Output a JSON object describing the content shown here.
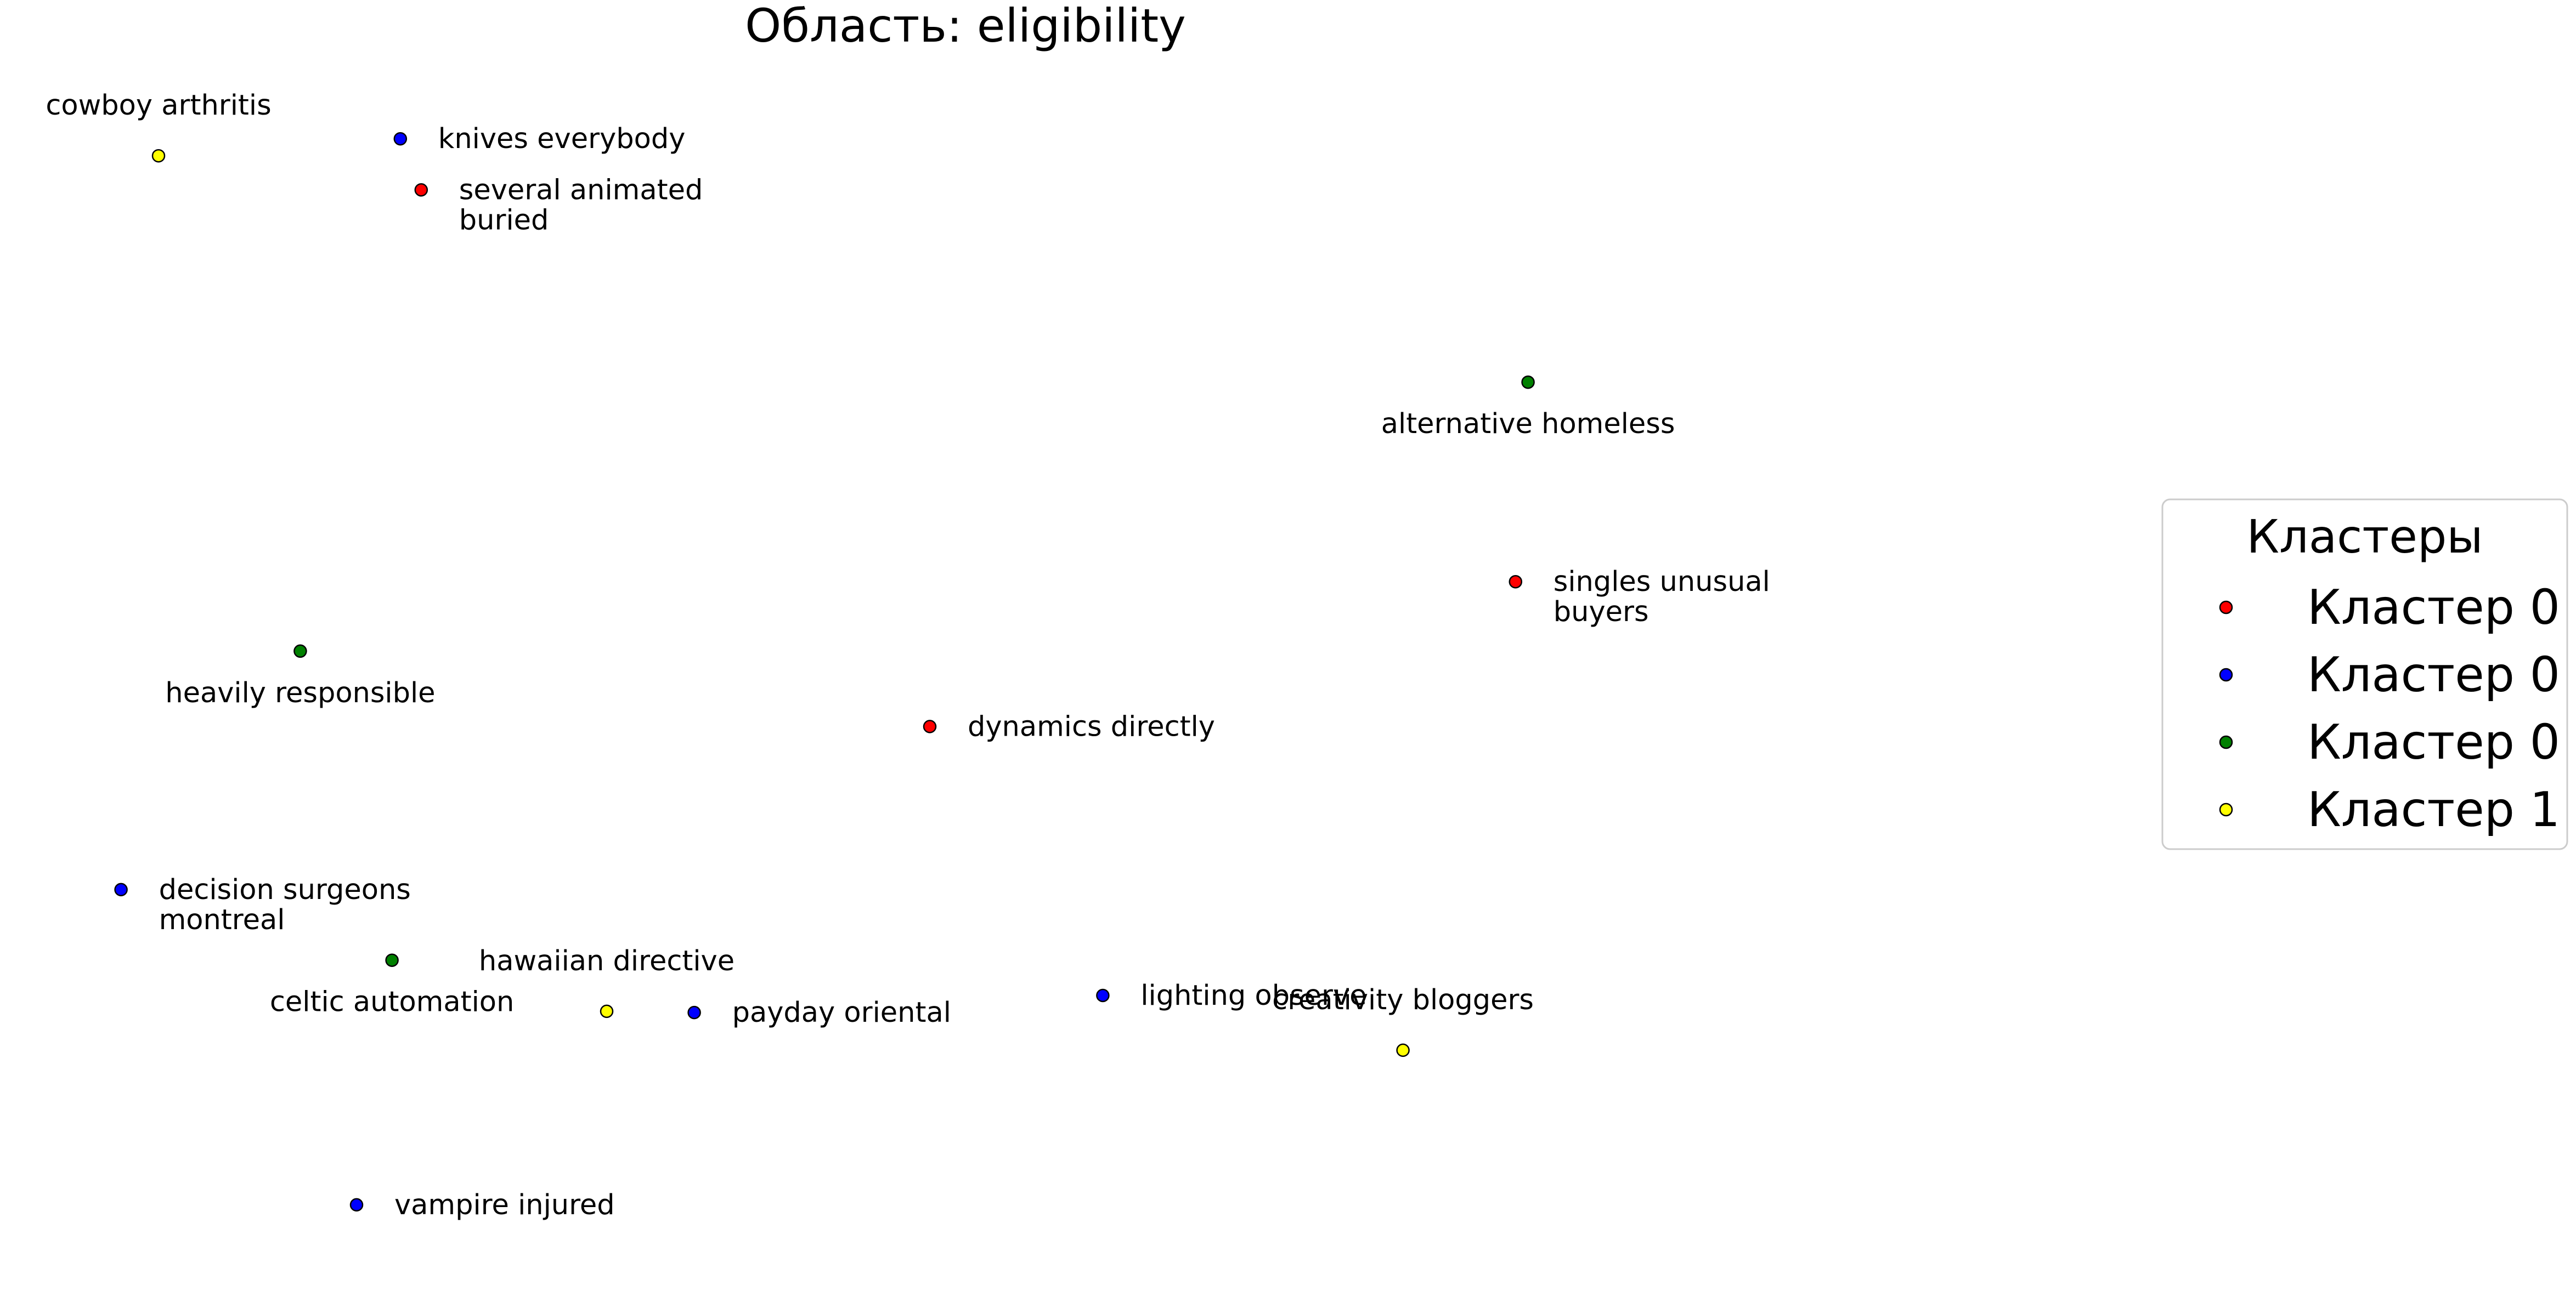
{
  "chart_data": {
    "type": "scatter",
    "title": "Область: eligibility",
    "xlabel": "",
    "ylabel": "",
    "axes_visible": false,
    "grid": false,
    "xlim": [
      0,
      100
    ],
    "ylim": [
      0,
      100
    ],
    "legend": {
      "title": "Кластеры",
      "position": "right",
      "entries": [
        {
          "label": "Кластер 0",
          "color": "#ff0000"
        },
        {
          "label": "Кластер 0",
          "color": "#0000ff"
        },
        {
          "label": "Кластер 0",
          "color": "#008000"
        },
        {
          "label": "Кластер 1",
          "color": "#ffff00"
        }
      ]
    },
    "points": [
      {
        "lines": [
          "cowboy arthritis"
        ],
        "x": 5.5,
        "y": 90.8,
        "color": "#ffff00",
        "label_pos": "above"
      },
      {
        "lines": [
          "knives everybody"
        ],
        "x": 17.1,
        "y": 92.2,
        "color": "#0000ff",
        "label_pos": "right"
      },
      {
        "lines": [
          "several animated",
          "buried"
        ],
        "x": 18.1,
        "y": 88.0,
        "color": "#ff0000",
        "label_pos": "right"
      },
      {
        "lines": [
          "alternative homeless"
        ],
        "x": 71.2,
        "y": 72.2,
        "color": "#008000",
        "label_pos": "below"
      },
      {
        "lines": [
          "singles unusual",
          "buyers"
        ],
        "x": 70.6,
        "y": 55.8,
        "color": "#ff0000",
        "label_pos": "right"
      },
      {
        "lines": [
          "heavily responsible"
        ],
        "x": 12.3,
        "y": 50.1,
        "color": "#008000",
        "label_pos": "below"
      },
      {
        "lines": [
          "dynamics directly"
        ],
        "x": 42.5,
        "y": 43.9,
        "color": "#ff0000",
        "label_pos": "right"
      },
      {
        "lines": [
          "decision surgeons",
          "montreal"
        ],
        "x": 3.7,
        "y": 30.5,
        "color": "#0000ff",
        "label_pos": "right"
      },
      {
        "lines": [
          "celtic automation"
        ],
        "x": 16.7,
        "y": 24.7,
        "color": "#008000",
        "label_pos": "below"
      },
      {
        "lines": [
          "hawaiian directive"
        ],
        "x": 27.0,
        "y": 20.5,
        "color": "#ffff00",
        "label_pos": "above"
      },
      {
        "lines": [
          "payday oriental"
        ],
        "x": 31.2,
        "y": 20.4,
        "color": "#0000ff",
        "label_pos": "right"
      },
      {
        "lines": [
          "lighting observe"
        ],
        "x": 50.8,
        "y": 21.8,
        "color": "#0000ff",
        "label_pos": "right"
      },
      {
        "lines": [
          "creativity bloggers"
        ],
        "x": 65.2,
        "y": 17.3,
        "color": "#ffff00",
        "label_pos": "above"
      },
      {
        "lines": [
          "vampire injured"
        ],
        "x": 15.0,
        "y": 4.6,
        "color": "#0000ff",
        "label_pos": "right"
      }
    ]
  }
}
